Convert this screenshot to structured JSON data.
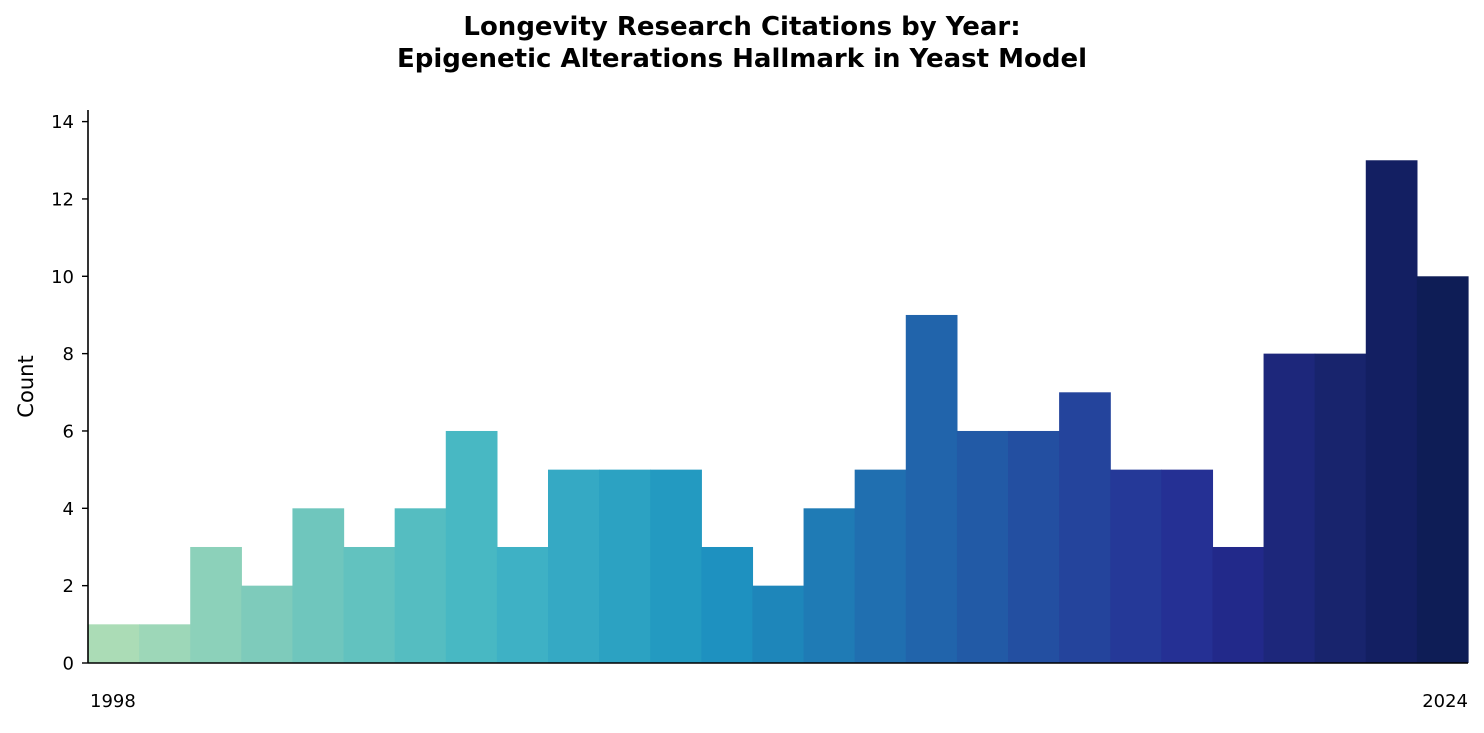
{
  "chart_data": {
    "type": "bar",
    "title_lines": [
      "Longevity Research Citations by Year:",
      "Epigenetic Alterations Hallmark in Yeast Model"
    ],
    "xlabel": "",
    "ylabel": "Count",
    "categories": [
      1998,
      1999,
      2000,
      2001,
      2002,
      2003,
      2004,
      2005,
      2006,
      2007,
      2008,
      2009,
      2010,
      2011,
      2012,
      2013,
      2014,
      2015,
      2016,
      2017,
      2018,
      2019,
      2020,
      2021,
      2022,
      2023,
      2024
    ],
    "values": [
      1,
      1,
      3,
      2,
      4,
      3,
      4,
      6,
      3,
      5,
      5,
      5,
      3,
      2,
      4,
      5,
      9,
      6,
      6,
      7,
      5,
      5,
      3,
      8,
      8,
      13,
      10
    ],
    "x_tick_labels": [
      "1998",
      "2024"
    ],
    "yticks": [
      0,
      2,
      4,
      6,
      8,
      10,
      12,
      14
    ],
    "ylim": [
      0,
      14.3
    ],
    "grid": false,
    "legend": "none",
    "colormap": "YlGnBu",
    "colors": [
      "#abdcb6",
      "#9dd7b8",
      "#8cd1ba",
      "#7ecbbb",
      "#6fc6bd",
      "#62c2bf",
      "#55bdc1",
      "#48b8c3",
      "#3eb1c5",
      "#35a9c4",
      "#2ca2c2",
      "#239ac1",
      "#1e91c0",
      "#1e86ba",
      "#1f7bb5",
      "#206fb0",
      "#2164ab",
      "#225aa6",
      "#234fa1",
      "#24449c",
      "#253998",
      "#253094",
      "#22298a",
      "#1d277b",
      "#18246d",
      "#131f62",
      "#0e1d56"
    ]
  }
}
